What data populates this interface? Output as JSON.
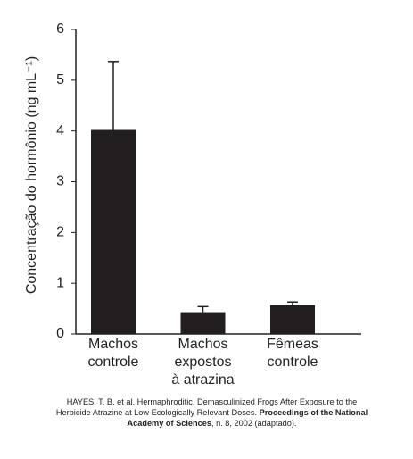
{
  "chart_data": {
    "type": "bar",
    "y_label": "Concentração do hormônio (ng mL⁻¹)",
    "categories": [
      [
        "Machos",
        "controle"
      ],
      [
        "Machos",
        "expostos",
        "à atrazina"
      ],
      [
        "Fêmeas",
        "controle"
      ]
    ],
    "values": [
      4.02,
      0.43,
      0.57
    ],
    "errors": [
      1.35,
      0.11,
      0.06
    ],
    "color": "#231f20",
    "ylim": [
      0,
      6
    ],
    "yticks": [
      0,
      1,
      2,
      3,
      4,
      5,
      6
    ]
  },
  "caption": {
    "text": "HAYES, T. B. et al. Hermaphroditic, Demasculinized Frogs After Exposure to the Herbicide Atrazine at Low Ecologically Relevant Doses.",
    "bold": "Proceedings of the National Academy of Sciences",
    "tail": ", n. 8, 2002 (adaptado)."
  }
}
